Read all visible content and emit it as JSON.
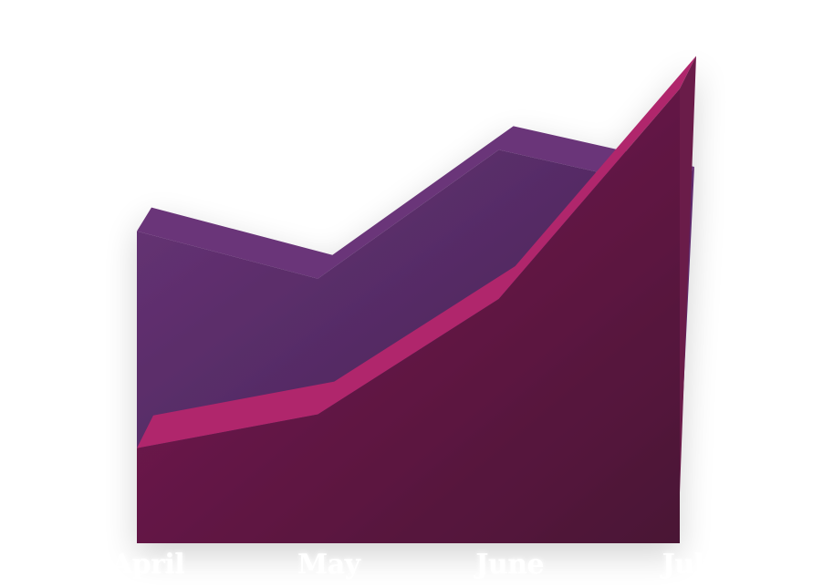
{
  "chart_data": {
    "type": "area",
    "style": "3d",
    "categories": [
      "April",
      "May",
      "June",
      "July"
    ],
    "series": [
      {
        "values": [
          46,
          39,
          58,
          52
        ],
        "color": "#5e2c6c",
        "top_color": "#6a3579"
      },
      {
        "values": [
          14,
          19,
          36,
          67
        ],
        "color": "#6b1a4a",
        "top_color": "#b0266c"
      }
    ],
    "ylim": [
      0,
      70
    ],
    "grid": false,
    "legend": "none"
  }
}
